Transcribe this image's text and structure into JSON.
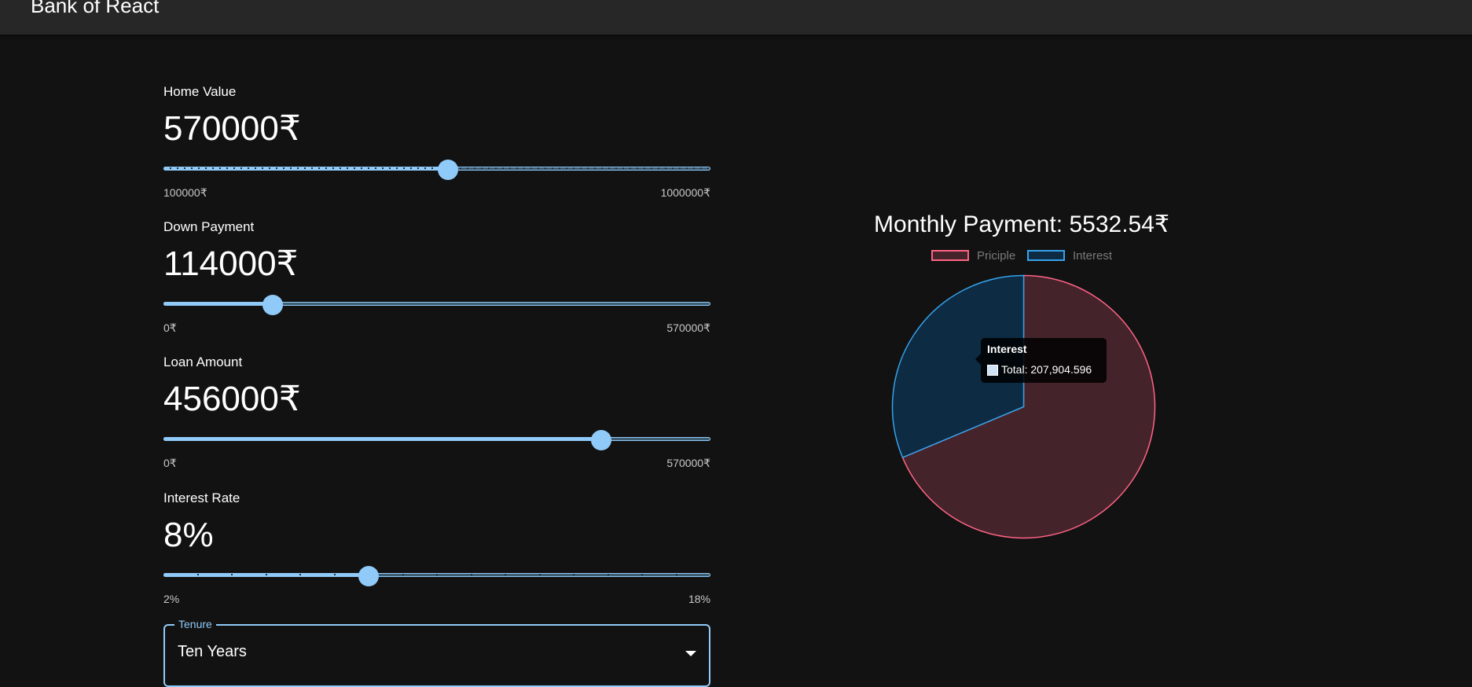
{
  "app": {
    "title": "Bank of React"
  },
  "fields": [
    {
      "label": "Home Value",
      "value": "570000₹",
      "min_label": "100000₹",
      "max_label": "1000000₹",
      "fraction": 0.52,
      "marks": "dense"
    },
    {
      "label": "Down Payment",
      "value": "114000₹",
      "min_label": "0₹",
      "max_label": "570000₹",
      "fraction": 0.2,
      "marks": "none"
    },
    {
      "label": "Loan Amount",
      "value": "456000₹",
      "min_label": "0₹",
      "max_label": "570000₹",
      "fraction": 0.8,
      "marks": "none"
    },
    {
      "label": "Interest Rate",
      "value": "8%",
      "min_label": "2%",
      "max_label": "18%",
      "fraction": 0.375,
      "marks": "sparse"
    }
  ],
  "tenure": {
    "label": "Tenure",
    "value": "Ten Years"
  },
  "chart_data": {
    "type": "pie",
    "title": "Monthly Payment: 5532.54₹",
    "series": [
      {
        "name": "Priciple",
        "value": 456000,
        "fill": "#44232b",
        "stroke": "#ff6384"
      },
      {
        "name": "Interest",
        "value": 207904.596,
        "fill": "#0d2b42",
        "stroke": "#36a2eb"
      }
    ],
    "legend_position": "top",
    "tooltip": {
      "title": "Interest",
      "body": "Total: 207,904.596"
    }
  }
}
